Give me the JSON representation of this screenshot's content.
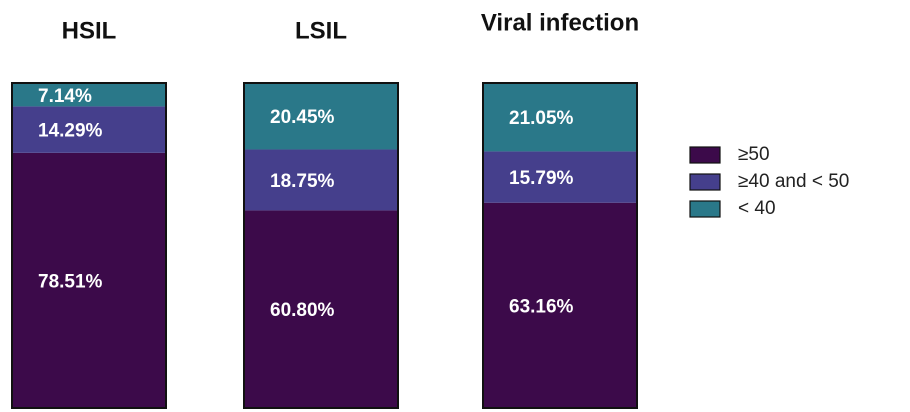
{
  "chart_data": {
    "type": "stacked_bar",
    "categories": [
      "HSIL",
      "LSIL",
      "Viral infection"
    ],
    "series": [
      {
        "name": "≥50",
        "color": "#3c0a4a",
        "values": [
          78.51,
          60.8,
          63.16
        ],
        "value_labels": [
          "78.51%",
          "60.80%",
          "63.16%"
        ]
      },
      {
        "name": "≥40 and < 50",
        "color": "#453f8c",
        "values": [
          14.29,
          18.75,
          15.79
        ],
        "value_labels": [
          "14.29%",
          "18.75%",
          "15.79%"
        ]
      },
      {
        "name": "< 40",
        "color": "#2a7889",
        "values": [
          7.14,
          20.45,
          21.05
        ],
        "value_labels": [
          "7.14%",
          "20.45%",
          "21.05%"
        ]
      }
    ],
    "ylim": [
      0,
      100
    ],
    "legend": "right"
  }
}
